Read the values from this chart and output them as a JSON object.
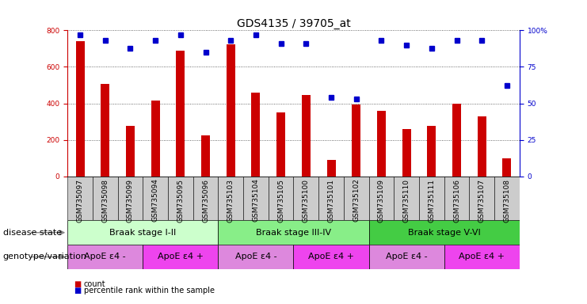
{
  "title": "GDS4135 / 39705_at",
  "samples": [
    "GSM735097",
    "GSM735098",
    "GSM735099",
    "GSM735094",
    "GSM735095",
    "GSM735096",
    "GSM735103",
    "GSM735104",
    "GSM735105",
    "GSM735100",
    "GSM735101",
    "GSM735102",
    "GSM735109",
    "GSM735110",
    "GSM735111",
    "GSM735106",
    "GSM735107",
    "GSM735108"
  ],
  "counts": [
    740,
    505,
    275,
    415,
    690,
    225,
    725,
    460,
    350,
    445,
    90,
    395,
    360,
    260,
    275,
    400,
    330,
    100
  ],
  "percentiles": [
    97,
    93,
    88,
    93,
    97,
    85,
    93,
    97,
    91,
    91,
    54,
    53,
    93,
    90,
    88,
    93,
    93,
    62
  ],
  "bar_color": "#cc0000",
  "dot_color": "#0000cc",
  "ylim_left": [
    0,
    800
  ],
  "ylim_right": [
    0,
    100
  ],
  "yticks_left": [
    0,
    200,
    400,
    600,
    800
  ],
  "yticks_right": [
    0,
    25,
    50,
    75,
    100
  ],
  "disease_state_groups": [
    {
      "label": "Braak stage I-II",
      "start": 0,
      "end": 6,
      "color": "#ccffcc"
    },
    {
      "label": "Braak stage III-IV",
      "start": 6,
      "end": 12,
      "color": "#88ee88"
    },
    {
      "label": "Braak stage V-VI",
      "start": 12,
      "end": 18,
      "color": "#44cc44"
    }
  ],
  "genotype_groups": [
    {
      "label": "ApoE ε4 -",
      "start": 0,
      "end": 3,
      "color": "#dd88dd"
    },
    {
      "label": "ApoE ε4 +",
      "start": 3,
      "end": 6,
      "color": "#ee44ee"
    },
    {
      "label": "ApoE ε4 -",
      "start": 6,
      "end": 9,
      "color": "#dd88dd"
    },
    {
      "label": "ApoE ε4 +",
      "start": 9,
      "end": 12,
      "color": "#ee44ee"
    },
    {
      "label": "ApoE ε4 -",
      "start": 12,
      "end": 15,
      "color": "#dd88dd"
    },
    {
      "label": "ApoE ε4 +",
      "start": 15,
      "end": 18,
      "color": "#ee44ee"
    }
  ],
  "disease_row_label": "disease state",
  "genotype_row_label": "genotype/variation",
  "legend_count_label": "count",
  "legend_pct_label": "percentile rank within the sample",
  "tick_bg_color": "#cccccc",
  "background_color": "#ffffff",
  "grid_color": "#444444",
  "title_fontsize": 10,
  "tick_fontsize": 6.5,
  "label_fontsize": 8,
  "annotation_fontsize": 8
}
